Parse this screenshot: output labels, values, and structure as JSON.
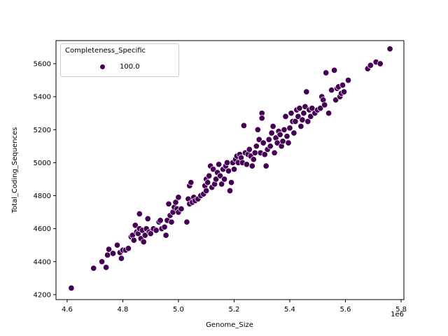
{
  "chart_data": {
    "type": "scatter",
    "title": "",
    "xlabel": "Genome_Size",
    "ylabel": "Total_Coding_Sequences",
    "x_offset_label": "1e6",
    "xlim": [
      4.56,
      5.81
    ],
    "ylim": [
      4170,
      5740
    ],
    "x_ticks": [
      4.6,
      4.8,
      5.0,
      5.2,
      5.4,
      5.6,
      5.8
    ],
    "x_tick_labels": [
      "4.6",
      "4.8",
      "5.0",
      "5.2",
      "5.4",
      "5.6",
      "5.8"
    ],
    "y_ticks": [
      4200,
      4400,
      4600,
      4800,
      5000,
      5200,
      5400,
      5600
    ],
    "y_tick_labels": [
      "4200",
      "4400",
      "4600",
      "4800",
      "5000",
      "5200",
      "5400",
      "5600"
    ],
    "grid": false,
    "legend": {
      "title": "Completeness_Specific",
      "position": "upper left",
      "entries": [
        {
          "label": "100.0",
          "color": "#440154"
        }
      ]
    },
    "series": [
      {
        "name": "100.0",
        "color": "#440154",
        "points": [
          [
            4.615,
            4240
          ],
          [
            4.695,
            4360
          ],
          [
            4.725,
            4400
          ],
          [
            4.74,
            4365
          ],
          [
            4.745,
            4440
          ],
          [
            4.75,
            4475
          ],
          [
            4.765,
            4450
          ],
          [
            4.78,
            4500
          ],
          [
            4.79,
            4455
          ],
          [
            4.795,
            4420
          ],
          [
            4.8,
            4470
          ],
          [
            4.81,
            4470
          ],
          [
            4.82,
            4480
          ],
          [
            4.83,
            4550
          ],
          [
            4.835,
            4560
          ],
          [
            4.84,
            4530
          ],
          [
            4.845,
            4620
          ],
          [
            4.85,
            4580
          ],
          [
            4.855,
            4570
          ],
          [
            4.86,
            4690
          ],
          [
            4.86,
            4600
          ],
          [
            4.865,
            4540
          ],
          [
            4.87,
            4590
          ],
          [
            4.875,
            4520
          ],
          [
            4.88,
            4560
          ],
          [
            4.885,
            4600
          ],
          [
            4.89,
            4660
          ],
          [
            4.895,
            4580
          ],
          [
            4.9,
            4570
          ],
          [
            4.91,
            4600
          ],
          [
            4.92,
            4590
          ],
          [
            4.93,
            4640
          ],
          [
            4.935,
            4650
          ],
          [
            4.94,
            4600
          ],
          [
            4.95,
            4610
          ],
          [
            4.955,
            4560
          ],
          [
            4.96,
            4650
          ],
          [
            4.965,
            4750
          ],
          [
            4.97,
            4680
          ],
          [
            4.975,
            4640
          ],
          [
            4.98,
            4700
          ],
          [
            4.985,
            4730
          ],
          [
            4.99,
            4760
          ],
          [
            4.995,
            4720
          ],
          [
            5.0,
            4790
          ],
          [
            5.0,
            4700
          ],
          [
            5.01,
            4720
          ],
          [
            5.03,
            4640
          ],
          [
            5.035,
            4780
          ],
          [
            5.04,
            4750
          ],
          [
            5.04,
            4860
          ],
          [
            5.045,
            4880
          ],
          [
            5.05,
            4760
          ],
          [
            5.055,
            4790
          ],
          [
            5.06,
            4770
          ],
          [
            5.07,
            4780
          ],
          [
            5.08,
            4800
          ],
          [
            5.09,
            4810
          ],
          [
            5.095,
            4860
          ],
          [
            5.1,
            4830
          ],
          [
            5.1,
            4900
          ],
          [
            5.105,
            4880
          ],
          [
            5.11,
            4920
          ],
          [
            5.115,
            4980
          ],
          [
            5.12,
            4850
          ],
          [
            5.125,
            4960
          ],
          [
            5.13,
            4870
          ],
          [
            5.135,
            4900
          ],
          [
            5.14,
            4940
          ],
          [
            5.145,
            4990
          ],
          [
            5.15,
            4920
          ],
          [
            5.155,
            4870
          ],
          [
            5.16,
            4960
          ],
          [
            5.165,
            4900
          ],
          [
            5.17,
            4980
          ],
          [
            5.175,
            5000
          ],
          [
            5.18,
            4950
          ],
          [
            5.185,
            4830
          ],
          [
            5.19,
            4880
          ],
          [
            5.195,
            5000
          ],
          [
            5.2,
            4960
          ],
          [
            5.205,
            5020
          ],
          [
            5.21,
            5040
          ],
          [
            5.215,
            5000
          ],
          [
            5.22,
            5050
          ],
          [
            5.225,
            5030
          ],
          [
            5.23,
            5000
          ],
          [
            5.235,
            5225
          ],
          [
            5.24,
            5060
          ],
          [
            5.245,
            4990
          ],
          [
            5.25,
            5050
          ],
          [
            5.255,
            5080
          ],
          [
            5.26,
            5040
          ],
          [
            5.265,
            4980
          ],
          [
            5.27,
            5020
          ],
          [
            5.275,
            5060
          ],
          [
            5.28,
            5100
          ],
          [
            5.285,
            5200
          ],
          [
            5.29,
            5140
          ],
          [
            5.295,
            5060
          ],
          [
            5.3,
            5300
          ],
          [
            5.3,
            5270
          ],
          [
            5.305,
            5120
          ],
          [
            5.31,
            5050
          ],
          [
            5.315,
            4980
          ],
          [
            5.32,
            5080
          ],
          [
            5.325,
            5140
          ],
          [
            5.33,
            5100
          ],
          [
            5.335,
            5180
          ],
          [
            5.34,
            5220
          ],
          [
            5.345,
            5060
          ],
          [
            5.35,
            5150
          ],
          [
            5.355,
            5120
          ],
          [
            5.36,
            5190
          ],
          [
            5.365,
            5170
          ],
          [
            5.37,
            5100
          ],
          [
            5.375,
            5130
          ],
          [
            5.38,
            5200
          ],
          [
            5.385,
            5280
          ],
          [
            5.39,
            5160
          ],
          [
            5.395,
            5120
          ],
          [
            5.4,
            5210
          ],
          [
            5.405,
            5300
          ],
          [
            5.41,
            5250
          ],
          [
            5.415,
            5180
          ],
          [
            5.42,
            5250
          ],
          [
            5.425,
            5320
          ],
          [
            5.43,
            5280
          ],
          [
            5.435,
            5330
          ],
          [
            5.44,
            5220
          ],
          [
            5.445,
            5260
          ],
          [
            5.45,
            5300
          ],
          [
            5.455,
            5340
          ],
          [
            5.46,
            5430
          ],
          [
            5.465,
            5250
          ],
          [
            5.47,
            5320
          ],
          [
            5.475,
            5280
          ],
          [
            5.48,
            5330
          ],
          [
            5.49,
            5300
          ],
          [
            5.5,
            5320
          ],
          [
            5.51,
            5330
          ],
          [
            5.515,
            5400
          ],
          [
            5.52,
            5380
          ],
          [
            5.525,
            5350
          ],
          [
            5.53,
            5545
          ],
          [
            5.54,
            5300
          ],
          [
            5.55,
            5440
          ],
          [
            5.56,
            5560
          ],
          [
            5.565,
            5380
          ],
          [
            5.57,
            5450
          ],
          [
            5.575,
            5460
          ],
          [
            5.58,
            5400
          ],
          [
            5.585,
            5420
          ],
          [
            5.59,
            5470
          ],
          [
            5.595,
            5430
          ],
          [
            5.61,
            5500
          ],
          [
            5.68,
            5570
          ],
          [
            5.69,
            5590
          ],
          [
            5.71,
            5610
          ],
          [
            5.725,
            5600
          ],
          [
            5.76,
            5690
          ]
        ]
      }
    ]
  },
  "plot": {
    "ylabel": "Total_Coding_Sequences",
    "xlabel": "Genome_Size",
    "x_offset": "1e6",
    "legend_title": "Completeness_Specific",
    "legend_label": "100.0"
  }
}
